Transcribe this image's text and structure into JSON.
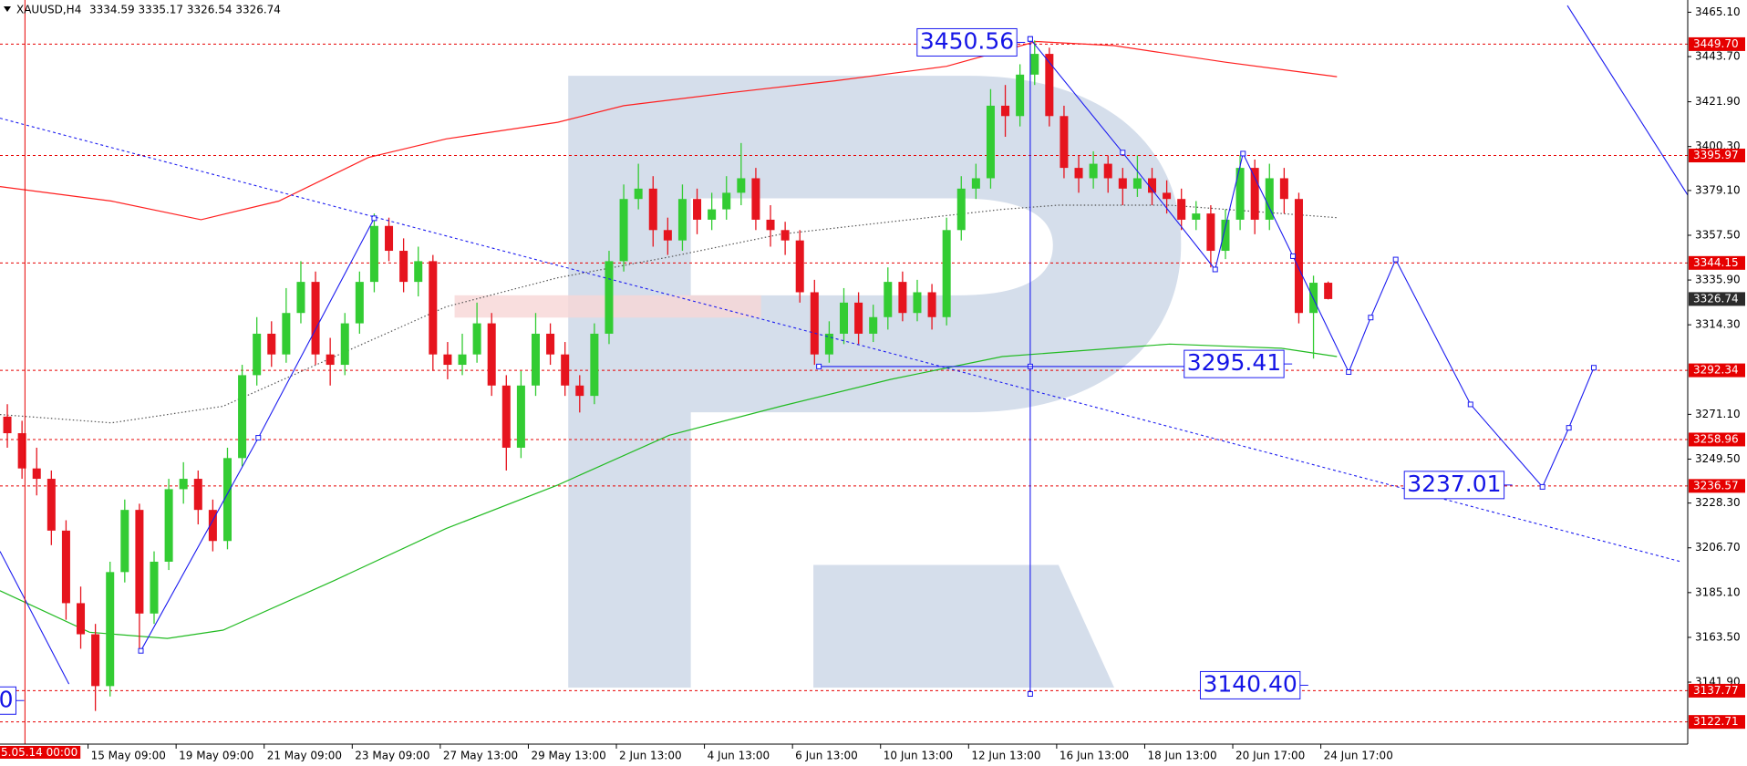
{
  "header": {
    "symbol_text": "XAUUSD,H4",
    "ohlc_text": "3334.59 3335.17 3326.54 3326.74"
  },
  "chart_data": {
    "type": "candlestick",
    "up_color": "#33cc33",
    "down_color": "#e6141e",
    "xlim": [
      -0.5,
      114.5
    ],
    "ylim": [
      3112,
      3471
    ],
    "candles": [
      [
        3270,
        3276,
        3255,
        3262
      ],
      [
        3262,
        3268,
        3240,
        3245
      ],
      [
        3245,
        3255,
        3232,
        3240
      ],
      [
        3240,
        3244,
        3208,
        3215
      ],
      [
        3215,
        3220,
        3172,
        3180
      ],
      [
        3180,
        3188,
        3158,
        3165
      ],
      [
        3165,
        3170,
        3128,
        3140
      ],
      [
        3140,
        3200,
        3135,
        3195
      ],
      [
        3195,
        3230,
        3190,
        3225
      ],
      [
        3225,
        3228,
        3157,
        3175
      ],
      [
        3175,
        3205,
        3170,
        3200
      ],
      [
        3200,
        3240,
        3196,
        3235
      ],
      [
        3235,
        3248,
        3228,
        3240
      ],
      [
        3240,
        3244,
        3218,
        3225
      ],
      [
        3225,
        3230,
        3205,
        3210
      ],
      [
        3210,
        3255,
        3206,
        3250
      ],
      [
        3250,
        3295,
        3246,
        3290
      ],
      [
        3290,
        3318,
        3285,
        3310
      ],
      [
        3310,
        3316,
        3294,
        3300
      ],
      [
        3300,
        3332,
        3296,
        3320
      ],
      [
        3320,
        3345,
        3315,
        3335
      ],
      [
        3335,
        3340,
        3295,
        3300
      ],
      [
        3300,
        3308,
        3285,
        3295
      ],
      [
        3295,
        3320,
        3290,
        3315
      ],
      [
        3315,
        3340,
        3310,
        3335
      ],
      [
        3335,
        3368,
        3330,
        3362
      ],
      [
        3362,
        3366,
        3345,
        3350
      ],
      [
        3350,
        3356,
        3330,
        3335
      ],
      [
        3335,
        3352,
        3328,
        3345
      ],
      [
        3345,
        3348,
        3292,
        3300
      ],
      [
        3300,
        3306,
        3288,
        3295
      ],
      [
        3295,
        3310,
        3290,
        3300
      ],
      [
        3300,
        3325,
        3296,
        3315
      ],
      [
        3315,
        3320,
        3280,
        3285
      ],
      [
        3285,
        3290,
        3244,
        3255
      ],
      [
        3255,
        3292,
        3250,
        3285
      ],
      [
        3285,
        3320,
        3280,
        3310
      ],
      [
        3310,
        3315,
        3295,
        3300
      ],
      [
        3300,
        3306,
        3280,
        3285
      ],
      [
        3285,
        3290,
        3272,
        3280
      ],
      [
        3280,
        3315,
        3276,
        3310
      ],
      [
        3310,
        3350,
        3305,
        3345
      ],
      [
        3345,
        3382,
        3340,
        3375
      ],
      [
        3375,
        3392,
        3370,
        3380
      ],
      [
        3380,
        3386,
        3352,
        3360
      ],
      [
        3360,
        3366,
        3348,
        3355
      ],
      [
        3355,
        3382,
        3350,
        3375
      ],
      [
        3375,
        3380,
        3358,
        3365
      ],
      [
        3365,
        3378,
        3360,
        3370
      ],
      [
        3370,
        3386,
        3365,
        3378
      ],
      [
        3378,
        3402,
        3372,
        3385
      ],
      [
        3385,
        3390,
        3360,
        3365
      ],
      [
        3365,
        3372,
        3352,
        3360
      ],
      [
        3360,
        3364,
        3348,
        3355
      ],
      [
        3355,
        3360,
        3325,
        3330
      ],
      [
        3330,
        3336,
        3295,
        3300
      ],
      [
        3300,
        3316,
        3296,
        3310
      ],
      [
        3310,
        3332,
        3305,
        3325
      ],
      [
        3325,
        3330,
        3305,
        3310
      ],
      [
        3310,
        3324,
        3306,
        3318
      ],
      [
        3318,
        3342,
        3312,
        3335
      ],
      [
        3335,
        3340,
        3316,
        3320
      ],
      [
        3320,
        3336,
        3316,
        3330
      ],
      [
        3330,
        3334,
        3312,
        3318
      ],
      [
        3318,
        3366,
        3314,
        3360
      ],
      [
        3360,
        3386,
        3355,
        3380
      ],
      [
        3380,
        3392,
        3375,
        3385
      ],
      [
        3385,
        3428,
        3380,
        3420
      ],
      [
        3420,
        3430,
        3405,
        3415
      ],
      [
        3415,
        3440,
        3410,
        3435
      ],
      [
        3435,
        3451.5,
        3430,
        3445
      ],
      [
        3445,
        3448,
        3410,
        3415
      ],
      [
        3415,
        3420,
        3385,
        3390
      ],
      [
        3390,
        3396,
        3378,
        3385
      ],
      [
        3385,
        3398,
        3380,
        3392
      ],
      [
        3392,
        3396,
        3378,
        3385
      ],
      [
        3385,
        3390,
        3372,
        3380
      ],
      [
        3380,
        3396,
        3376,
        3385
      ],
      [
        3385,
        3390,
        3372,
        3378
      ],
      [
        3378,
        3384,
        3368,
        3375
      ],
      [
        3375,
        3380,
        3360,
        3365
      ],
      [
        3365,
        3374,
        3360,
        3368
      ],
      [
        3368,
        3372,
        3342,
        3350
      ],
      [
        3350,
        3370,
        3346,
        3365
      ],
      [
        3365,
        3396,
        3360,
        3390
      ],
      [
        3390,
        3394,
        3358,
        3365
      ],
      [
        3365,
        3392,
        3360,
        3385
      ],
      [
        3385,
        3390,
        3368,
        3375
      ],
      [
        3375,
        3378,
        3315,
        3320
      ],
      [
        3320,
        3338,
        3298,
        3334.59
      ],
      [
        3334.59,
        3335.17,
        3326.54,
        3326.74
      ]
    ],
    "yticks": [
      {
        "value": 3465.1,
        "label": "3465.10"
      },
      {
        "value": 3443.7,
        "label": "3443.70"
      },
      {
        "value": 3421.9,
        "label": "3421.90"
      },
      {
        "value": 3400.3,
        "label": "3400.30"
      },
      {
        "value": 3379.1,
        "label": "3379.10"
      },
      {
        "value": 3357.5,
        "label": "3357.50"
      },
      {
        "value": 3335.9,
        "label": "3335.90"
      },
      {
        "value": 3314.3,
        "label": "3314.30"
      },
      {
        "value": 3271.1,
        "label": "3271.10"
      },
      {
        "value": 3249.5,
        "label": "3249.50"
      },
      {
        "value": 3228.3,
        "label": "3228.30"
      },
      {
        "value": 3206.7,
        "label": "3206.70"
      },
      {
        "value": 3185.1,
        "label": "3185.10"
      },
      {
        "value": 3163.5,
        "label": "3163.50"
      },
      {
        "value": 3141.9,
        "label": "3141.90"
      }
    ],
    "xticks": [
      {
        "value": 5.5,
        "label": "15 May 09:00"
      },
      {
        "value": 11.5,
        "label": "19 May 09:00"
      },
      {
        "value": 17.5,
        "label": "21 May 09:00"
      },
      {
        "value": 23.5,
        "label": "23 May 09:00"
      },
      {
        "value": 29.5,
        "label": "27 May 13:00"
      },
      {
        "value": 35.5,
        "label": "29 May 13:00"
      },
      {
        "value": 41.5,
        "label": "2 Jun 13:00"
      },
      {
        "value": 47.5,
        "label": "4 Jun 13:00"
      },
      {
        "value": 53.5,
        "label": "6 Jun 13:00"
      },
      {
        "value": 59.5,
        "label": "10 Jun 13:00"
      },
      {
        "value": 65.5,
        "label": "12 Jun 13:00"
      },
      {
        "value": 71.5,
        "label": "16 Jun 13:00"
      },
      {
        "value": 77.5,
        "label": "18 Jun 13:00"
      },
      {
        "value": 83.5,
        "label": "20 Jun 17:00"
      },
      {
        "value": 89.5,
        "label": "24 Jun 17:00"
      }
    ],
    "level_color": "#e60000",
    "levels": [
      {
        "value": 3449.7,
        "label": "3449.70"
      },
      {
        "value": 3395.97,
        "label": "3395.97"
      },
      {
        "value": 3344.15,
        "label": "3344.15"
      },
      {
        "value": 3292.34,
        "label": "3292.34"
      },
      {
        "value": 3258.96,
        "label": "3258.96"
      },
      {
        "value": 3236.57,
        "label": "3236.57"
      },
      {
        "value": 3137.77,
        "label": "3137.77"
      },
      {
        "value": 3122.71,
        "label": "3122.71"
      }
    ],
    "current_price": {
      "value": 3326.74,
      "label": "3326.74"
    },
    "indicators": [
      {
        "color": "#ff2020",
        "style": "solid",
        "x": [
          -0.5,
          7.1,
          13.2,
          18.5,
          24.6,
          29.9,
          37.5,
          42.0,
          48.9,
          56.4,
          64.0,
          70.1,
          75.4,
          83.0,
          90.6
        ],
        "values": [
          3381,
          3374,
          3365,
          3374,
          3395,
          3404,
          3412,
          3420,
          3426,
          3432,
          3439,
          3451,
          3449,
          3441,
          3434
        ]
      },
      {
        "color": "#22bb22",
        "style": "solid",
        "x": [
          -0.5,
          5.6,
          10.9,
          14.7,
          22.3,
          29.9,
          37.5,
          45.1,
          52.7,
          60.2,
          67.8,
          75.4,
          79.2,
          86.8,
          90.6
        ],
        "values": [
          3186,
          3166,
          3163,
          3167,
          3191,
          3216,
          3237,
          3261,
          3275,
          3288,
          3299,
          3303,
          3305,
          3303,
          3299
        ]
      },
      {
        "color": "#555555",
        "style": "dotted",
        "x": [
          -0.5,
          7.1,
          14.7,
          22.3,
          29.9,
          37.5,
          45.1,
          52.7,
          60.2,
          67.8,
          71.6,
          79.2,
          90.6
        ],
        "values": [
          3271,
          3267,
          3275,
          3299,
          3323,
          3337,
          3347,
          3358,
          3364,
          3370,
          3372,
          3372,
          3366
        ]
      }
    ],
    "drawing_color": "#1c1cf0",
    "drawings": [
      {
        "style": "solid",
        "markers": false,
        "points": [
          [
            -0.5,
            3205
          ],
          [
            4.2,
            3141
          ]
        ]
      },
      {
        "style": "solid",
        "markers": true,
        "points": [
          [
            9.1,
            3157
          ],
          [
            17.1,
            3259.8
          ],
          [
            25.0,
            3365.7
          ]
        ]
      },
      {
        "style": "solid",
        "markers": true,
        "points": [
          [
            69.7,
            3452.2
          ],
          [
            76.0,
            3397.4
          ],
          [
            82.3,
            3341.0
          ],
          [
            84.2,
            3396.9
          ],
          [
            87.6,
            3347.4
          ],
          [
            91.4,
            3291.5
          ],
          [
            92.9,
            3317.8
          ],
          [
            94.6,
            3345.8
          ],
          [
            99.7,
            3275.9
          ],
          [
            104.6,
            3236.1
          ],
          [
            106.4,
            3264.6
          ],
          [
            108.1,
            3293.6
          ]
        ]
      },
      {
        "style": "solid",
        "markers": true,
        "points": [
          [
            69.7,
            3452.2
          ],
          [
            69.7,
            3294.2
          ],
          [
            69.7,
            3136.2
          ]
        ]
      },
      {
        "style": "solid",
        "markers": true,
        "points": [
          [
            55.3,
            3294.2
          ],
          [
            86.8,
            3294.2
          ]
        ]
      },
      {
        "style": "solid",
        "markers": false,
        "points": [
          [
            106.3,
            3468.3
          ],
          [
            114.5,
            3376.9
          ]
        ]
      },
      {
        "style": "dashed",
        "markers": false,
        "points": [
          [
            -0.5,
            3414.0
          ],
          [
            114.0,
            3200.1
          ]
        ]
      }
    ],
    "annotations": [
      {
        "text": "3450.56",
        "price": 3450.56,
        "index": 68.6
      },
      {
        "text": "3295.41",
        "price": 3295.41,
        "index": 86.8
      },
      {
        "text": "3237.01",
        "price": 3237.01,
        "index": 101.8
      },
      {
        "text": "3140.40",
        "price": 3140.4,
        "index": 87.9
      },
      {
        "text": "0",
        "price": 3133,
        "index": 0.4
      }
    ],
    "cursor": {
      "x": 1.2,
      "label": "5.05.14 00:00"
    }
  }
}
